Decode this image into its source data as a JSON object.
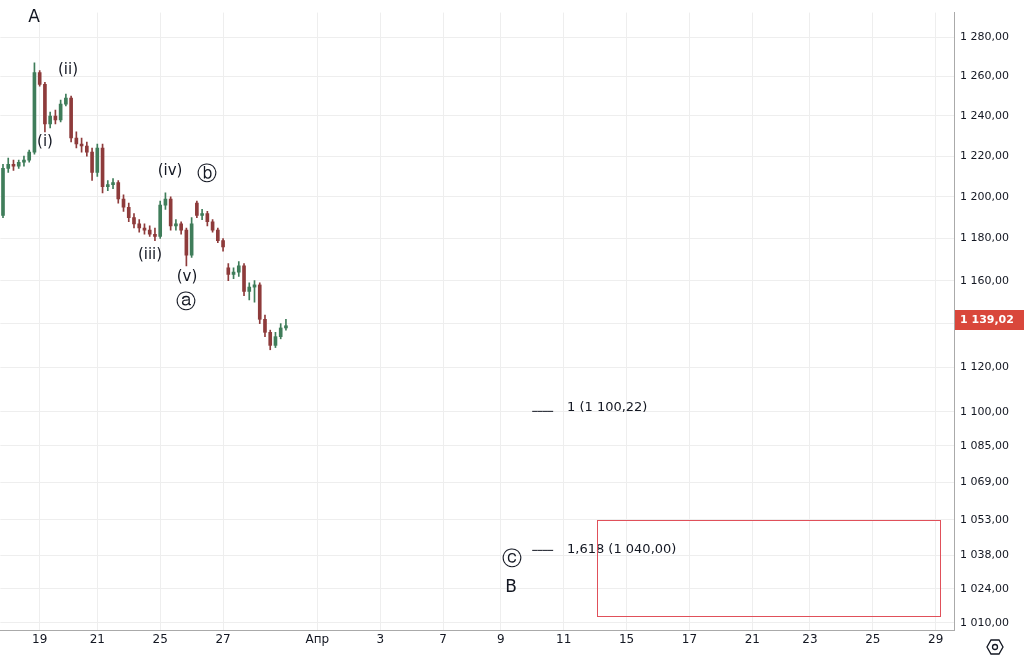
{
  "chart_data": {
    "type": "candlestick",
    "categories": [
      null,
      null,
      null,
      null,
      null,
      null,
      null,
      "19",
      null,
      null,
      null,
      null,
      null,
      null,
      null,
      null,
      null,
      null,
      "21",
      null,
      null,
      null,
      null,
      null,
      null,
      null,
      null,
      null,
      null,
      null,
      "25",
      null,
      null,
      null,
      null,
      null,
      null,
      null,
      null,
      null,
      null,
      null,
      "27",
      null,
      null,
      null,
      null,
      null,
      null,
      null,
      null,
      null,
      null,
      null,
      null,
      null,
      null,
      null,
      null,
      null,
      "Апр",
      null,
      null,
      null,
      null,
      null,
      null,
      null,
      null,
      null,
      null,
      null,
      "3",
      null,
      null,
      null,
      null,
      null,
      null,
      null,
      null,
      null,
      null,
      null,
      "7",
      null,
      null,
      null,
      null,
      null,
      null,
      null,
      null,
      null,
      null,
      "9",
      null,
      null,
      null,
      null,
      null,
      null,
      null,
      null,
      null,
      null,
      null,
      "11",
      null,
      null,
      null,
      null,
      null,
      null,
      null,
      null,
      null,
      null,
      null,
      "15",
      null,
      null,
      null,
      null,
      null,
      null,
      null,
      null,
      null,
      null,
      null,
      "17",
      null,
      null,
      null,
      null,
      null,
      null,
      null,
      null,
      null,
      null,
      null,
      "21",
      null,
      null,
      null,
      null,
      null,
      null,
      null,
      null,
      null,
      null,
      "23",
      null,
      null,
      null,
      null,
      null,
      null,
      null,
      null,
      null,
      null,
      null,
      "25",
      null,
      null,
      null,
      null,
      null,
      null,
      null,
      null,
      null,
      null,
      null,
      "29",
      null,
      null,
      null
    ],
    "ohlc": [
      [
        1191,
        1216,
        1190,
        1214
      ],
      [
        1214,
        1219,
        1212,
        1216
      ],
      [
        1216,
        1218,
        1213,
        1215
      ],
      [
        1215,
        1218,
        1214,
        1217
      ],
      [
        1217,
        1220,
        1215,
        1218
      ],
      [
        1218,
        1223,
        1217,
        1222
      ],
      [
        1222,
        1267,
        1221,
        1262
      ],
      [
        1262,
        1263,
        1255,
        1256
      ],
      [
        1256,
        1257,
        1232,
        1236
      ],
      [
        1236,
        1242,
        1234,
        1240
      ],
      [
        1240,
        1243,
        1236,
        1238
      ],
      [
        1238,
        1248,
        1237,
        1246
      ],
      [
        1246,
        1251,
        1245,
        1249
      ],
      [
        1249,
        1250,
        1227,
        1229
      ],
      [
        1229,
        1232,
        1224,
        1226
      ],
      [
        1226,
        1229,
        1222,
        1225
      ],
      [
        1225,
        1227,
        1220,
        1222
      ],
      [
        1222,
        1224,
        1208,
        1212
      ],
      [
        1212,
        1226,
        1210,
        1224
      ],
      [
        1224,
        1226,
        1202,
        1205
      ],
      [
        1205,
        1208,
        1203,
        1206
      ],
      [
        1206,
        1209,
        1204,
        1207
      ],
      [
        1207,
        1208,
        1197,
        1199
      ],
      [
        1199,
        1201,
        1193,
        1195
      ],
      [
        1195,
        1197,
        1188,
        1190
      ],
      [
        1190,
        1192,
        1185,
        1187
      ],
      [
        1187,
        1189,
        1183,
        1185
      ],
      [
        1185,
        1187,
        1182,
        1184
      ],
      [
        1184,
        1186,
        1181,
        1182
      ],
      [
        1182,
        1185,
        1179,
        1181
      ],
      [
        1181,
        1198,
        1180,
        1196
      ],
      [
        1196,
        1202,
        1194,
        1199
      ],
      [
        1199,
        1200,
        1184,
        1186
      ],
      [
        1186,
        1189,
        1184,
        1187
      ],
      [
        1187,
        1188,
        1182,
        1184
      ],
      [
        1184,
        1185,
        1167,
        1172
      ],
      [
        1172,
        1190,
        1171,
        1187
      ],
      [
        1197,
        1198,
        1190,
        1191
      ],
      [
        1191,
        1194,
        1189,
        1192
      ],
      [
        1192,
        1193,
        1186,
        1188
      ],
      [
        1188,
        1189,
        1183,
        1184
      ],
      [
        1184,
        1185,
        1178,
        1179
      ],
      [
        1179,
        1180,
        1174,
        1176
      ],
      [
        1166,
        1168,
        1160,
        1163
      ],
      [
        1163,
        1166,
        1161,
        1164
      ],
      [
        1164,
        1169,
        1162,
        1167
      ],
      [
        1167,
        1168,
        1153,
        1155
      ],
      [
        1155,
        1159,
        1151,
        1157
      ],
      [
        1157,
        1160,
        1150,
        1158
      ],
      [
        1158,
        1159,
        1140,
        1142
      ],
      [
        1142,
        1144,
        1134,
        1136
      ],
      [
        1136,
        1137,
        1128,
        1130
      ],
      [
        1130,
        1136,
        1129,
        1134
      ],
      [
        1134,
        1140,
        1133,
        1138
      ],
      [
        1138,
        1142,
        1137,
        1139.02
      ],
      null,
      null,
      null,
      null,
      null,
      null,
      null,
      null,
      null,
      null,
      null,
      null,
      null,
      null,
      null,
      null,
      null,
      null,
      null,
      null,
      null,
      null,
      null,
      null,
      null,
      null,
      null,
      null,
      null,
      null,
      null,
      null,
      null,
      null,
      null,
      null,
      null,
      null,
      null,
      null,
      null,
      null,
      null,
      null,
      null,
      null,
      null,
      null,
      null,
      null,
      null,
      null,
      null,
      null,
      null,
      null,
      null,
      null,
      null,
      null,
      null,
      null,
      null,
      null,
      null,
      null,
      null,
      null,
      null,
      null,
      null,
      null,
      null,
      null,
      null,
      null,
      null,
      null,
      null,
      null,
      null,
      null,
      null,
      null,
      null,
      null,
      null,
      null,
      null,
      null,
      null,
      null,
      null,
      null,
      null,
      null,
      null,
      null,
      null,
      null,
      null,
      null,
      null,
      null,
      null,
      null,
      null,
      null,
      null,
      null,
      null,
      null,
      null,
      null,
      null,
      null,
      null,
      null,
      null,
      null,
      null,
      null,
      null,
      null,
      null,
      null,
      null
    ],
    "series": [
      {
        "type": "line",
        "color": "#131722",
        "values": [
          null,
          null,
          null,
          null,
          null,
          null,
          null,
          null,
          null,
          null,
          null,
          null,
          null,
          null,
          null,
          null,
          null,
          null,
          null,
          null,
          null,
          null,
          null,
          null,
          null,
          null,
          null,
          null,
          null,
          null,
          null,
          null,
          null,
          null,
          null,
          null,
          null,
          null,
          null,
          null,
          null,
          null,
          null,
          null,
          null,
          null,
          null,
          null,
          null,
          null,
          null,
          null,
          null,
          null,
          null,
          null,
          null,
          null,
          null,
          null,
          null,
          null,
          null,
          null,
          null,
          null,
          null,
          null,
          null,
          null,
          null,
          null,
          null,
          null,
          null,
          null,
          null,
          null,
          null,
          null,
          null,
          null,
          null,
          null,
          null,
          null,
          null,
          null,
          null,
          null,
          null,
          null,
          null,
          null,
          null,
          null,
          null,
          null,
          null,
          null,
          null,
          1100.22,
          1100.22,
          1100.22,
          1100.22,
          1100.22,
          null,
          null,
          null,
          null,
          null,
          null,
          null,
          null,
          null,
          null,
          null,
          null,
          null,
          null,
          null,
          null,
          null,
          null,
          null,
          null,
          null,
          null,
          null,
          null,
          null,
          null,
          null,
          null,
          null,
          null,
          null,
          null,
          null,
          null,
          null,
          null,
          null,
          null,
          null,
          null,
          null,
          null,
          null,
          null,
          null,
          null,
          null,
          null,
          null,
          null,
          null,
          null,
          null,
          null,
          null,
          null,
          null,
          null,
          null,
          null,
          null,
          null,
          null,
          null,
          null,
          null,
          null,
          null,
          null,
          null,
          null,
          null,
          null,
          null,
          null,
          null
        ]
      },
      {
        "type": "line",
        "color": "#131722",
        "values": [
          null,
          null,
          null,
          null,
          null,
          null,
          null,
          null,
          null,
          null,
          null,
          null,
          null,
          null,
          null,
          null,
          null,
          null,
          null,
          null,
          null,
          null,
          null,
          null,
          null,
          null,
          null,
          null,
          null,
          null,
          null,
          null,
          null,
          null,
          null,
          null,
          null,
          null,
          null,
          null,
          null,
          null,
          null,
          null,
          null,
          null,
          null,
          null,
          null,
          null,
          null,
          null,
          null,
          null,
          null,
          null,
          null,
          null,
          null,
          null,
          null,
          null,
          null,
          null,
          null,
          null,
          null,
          null,
          null,
          null,
          null,
          null,
          null,
          null,
          null,
          null,
          null,
          null,
          null,
          null,
          null,
          null,
          null,
          null,
          null,
          null,
          null,
          null,
          null,
          null,
          null,
          null,
          null,
          null,
          null,
          null,
          null,
          null,
          null,
          null,
          null,
          1040,
          1040,
          1040,
          1040,
          1040,
          null,
          null,
          null,
          null,
          null,
          null,
          null,
          null,
          null,
          null,
          null,
          null,
          null,
          null,
          null,
          null,
          null,
          null,
          null,
          null,
          null,
          null,
          null,
          null,
          null,
          null,
          null,
          null,
          null,
          null,
          null,
          null,
          null,
          null,
          null,
          null,
          null,
          null,
          null,
          null,
          null,
          null,
          null,
          null,
          null,
          null,
          null,
          null,
          null,
          null,
          null,
          null,
          null,
          null,
          null,
          null,
          null,
          null,
          null,
          null,
          null,
          null,
          null,
          null,
          null,
          null,
          null,
          null,
          null,
          null,
          null,
          null,
          null,
          null,
          null,
          null
        ]
      }
    ],
    "log": "y",
    "grid": true,
    "ylim": [
      1007,
      1293
    ],
    "yticks": [
      {
        "value": 1010,
        "label": "1 010,00"
      },
      {
        "value": 1024,
        "label": "1 024,00"
      },
      {
        "value": 1038,
        "label": "1 038,00"
      },
      {
        "value": 1053,
        "label": "1 053,00"
      },
      {
        "value": 1069,
        "label": "1 069,00"
      },
      {
        "value": 1085,
        "label": "1 085,00"
      },
      {
        "value": 1100,
        "label": "1 100,00"
      },
      {
        "value": 1120,
        "label": "1 120,00"
      },
      {
        "value": 1140,
        "label": null
      },
      {
        "value": 1160,
        "label": "1 160,00"
      },
      {
        "value": 1180,
        "label": "1 180,00"
      },
      {
        "value": 1200,
        "label": "1 200,00"
      },
      {
        "value": 1220,
        "label": "1 220,00"
      },
      {
        "value": 1240,
        "label": "1 240,00"
      },
      {
        "value": 1260,
        "label": "1 260,00"
      },
      {
        "value": 1280,
        "label": "1 280,00"
      }
    ],
    "annotations": [
      "A",
      "(i)",
      "(ii)",
      "(iii)",
      "(iv)",
      "(v)",
      "ⓐ",
      "ⓑ",
      "ⓒ",
      "B",
      "1 (1 100,22)",
      "1,618 (1 040,00)",
      "1 139,02"
    ]
  }
}
